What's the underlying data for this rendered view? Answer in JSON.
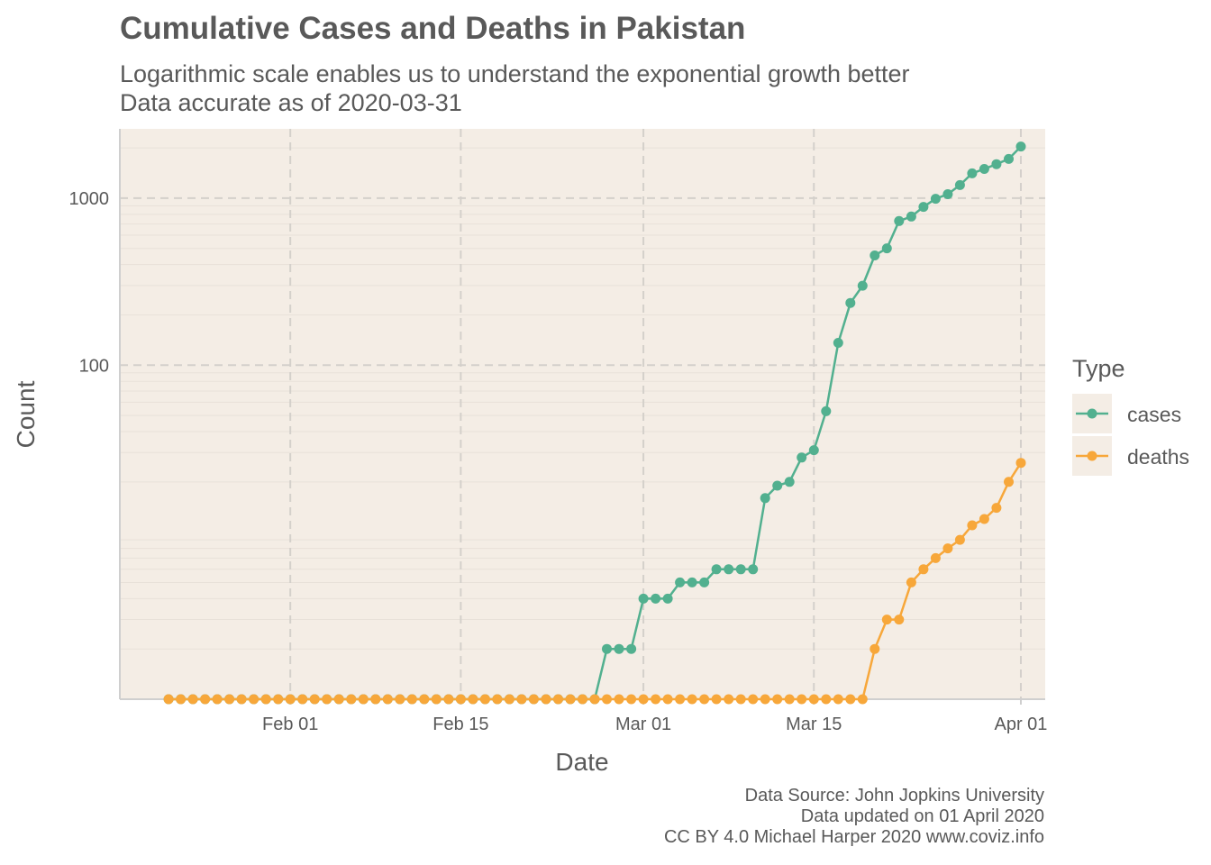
{
  "chart_data": {
    "type": "line",
    "title": "Cumulative Cases and Deaths in Pakistan",
    "subtitle_lines": [
      "Logarithmic scale enables us to understand the exponential growth better",
      "Data accurate as of 2020-03-31"
    ],
    "xlabel": "Date",
    "ylabel": "Count",
    "y_scale": "log10",
    "x_range": [
      "2020-01-18",
      "2020-04-03"
    ],
    "y_range": [
      1,
      2600
    ],
    "x_ticks": [
      {
        "date": "2020-02-01",
        "label": "Feb 01"
      },
      {
        "date": "2020-02-15",
        "label": "Feb 15"
      },
      {
        "date": "2020-03-01",
        "label": "Mar 01"
      },
      {
        "date": "2020-03-15",
        "label": "Mar 15"
      },
      {
        "date": "2020-04-01",
        "label": "Apr 01"
      }
    ],
    "y_ticks": [
      {
        "value": 100,
        "label": "100"
      },
      {
        "value": 1000,
        "label": "1000"
      }
    ],
    "start_date": "2020-01-22",
    "end_date": "2020-03-31",
    "legend": {
      "title": "Type",
      "position": "right"
    },
    "grid": true,
    "series": [
      {
        "name": "cases",
        "color": "#52b08f",
        "values": [
          0,
          0,
          0,
          0,
          0,
          0,
          0,
          0,
          0,
          0,
          0,
          0,
          0,
          0,
          0,
          0,
          0,
          0,
          0,
          0,
          0,
          0,
          0,
          0,
          0,
          0,
          0,
          0,
          0,
          0,
          0,
          0,
          0,
          0,
          0,
          0,
          2,
          2,
          2,
          4,
          4,
          4,
          5,
          5,
          5,
          6,
          6,
          6,
          6,
          16,
          19,
          20,
          28,
          31,
          53,
          136,
          236,
          299,
          454,
          501,
          730,
          776,
          887,
          991,
          1057,
          1197,
          1408,
          1495,
          1597,
          1717,
          2039
        ]
      },
      {
        "name": "deaths",
        "color": "#f7a73a",
        "values": [
          0,
          0,
          0,
          0,
          0,
          0,
          0,
          0,
          0,
          0,
          0,
          0,
          0,
          0,
          0,
          0,
          0,
          0,
          0,
          0,
          0,
          0,
          0,
          0,
          0,
          0,
          0,
          0,
          0,
          0,
          0,
          0,
          0,
          0,
          0,
          0,
          0,
          0,
          0,
          0,
          0,
          0,
          0,
          0,
          0,
          0,
          0,
          0,
          0,
          0,
          0,
          0,
          0,
          0,
          0,
          0,
          0,
          0,
          2,
          3,
          3,
          5,
          6,
          7,
          8,
          9,
          11,
          12,
          14,
          20,
          26
        ]
      }
    ]
  },
  "caption_lines": [
    "Data Source: John Jopkins University",
    "Data updated on 01 April 2020",
    "CC BY 4.0 Michael Harper 2020 www.coviz.info"
  ]
}
